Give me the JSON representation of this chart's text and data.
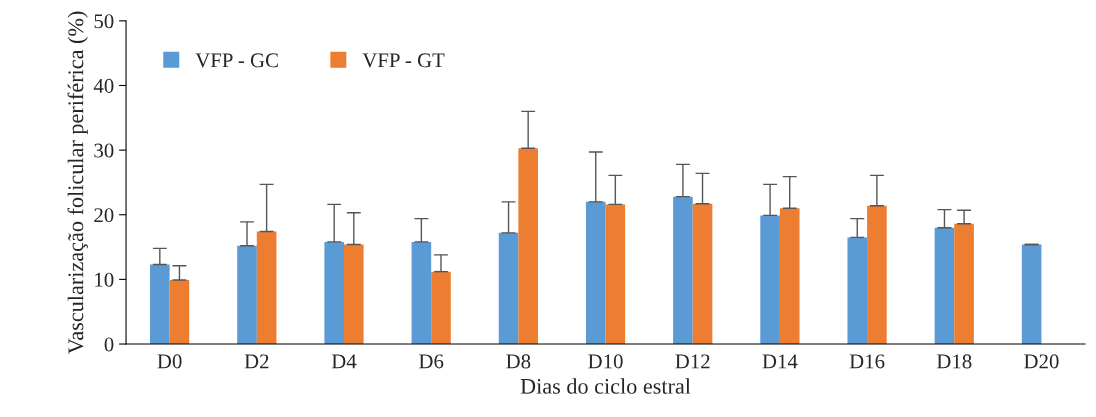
{
  "chart_data": {
    "type": "bar",
    "xlabel": "Dias do ciclo estral",
    "ylabel": "Vascularização folicular periférica (%)",
    "categories": [
      "D0",
      "D2",
      "D4",
      "D6",
      "D8",
      "D10",
      "D12",
      "D14",
      "D16",
      "D18",
      "D20"
    ],
    "series": [
      {
        "name": "VFP - GC",
        "color": "#5b9bd5",
        "values": [
          12.3,
          15.2,
          15.8,
          15.8,
          17.2,
          22.0,
          22.8,
          19.9,
          16.5,
          18.0,
          15.4
        ],
        "errors": [
          [
            12.3,
            14.8
          ],
          [
            15.2,
            18.9
          ],
          [
            15.8,
            21.6
          ],
          [
            15.8,
            19.4
          ],
          [
            17.2,
            22.0
          ],
          [
            22.0,
            29.7
          ],
          [
            22.8,
            27.8
          ],
          [
            19.9,
            24.7
          ],
          [
            16.5,
            19.4
          ],
          [
            18.0,
            20.8
          ],
          [
            15.4,
            15.4
          ]
        ]
      },
      {
        "name": "VFP - GT",
        "color": "#ed7d31",
        "values": [
          9.9,
          17.4,
          15.4,
          11.2,
          30.3,
          21.6,
          21.7,
          21.0,
          21.4,
          18.6,
          null
        ],
        "errors": [
          [
            9.9,
            12.1
          ],
          [
            17.4,
            24.7
          ],
          [
            15.4,
            20.3
          ],
          [
            11.2,
            13.8
          ],
          [
            30.3,
            36.0
          ],
          [
            21.6,
            26.1
          ],
          [
            21.7,
            26.4
          ],
          [
            21.0,
            25.9
          ],
          [
            21.4,
            26.1
          ],
          [
            18.6,
            20.7
          ],
          null
        ]
      }
    ],
    "ylim": [
      0,
      50
    ],
    "yticks": [
      0,
      10,
      20,
      30,
      40,
      50
    ],
    "grid": false,
    "legend": "top left"
  }
}
